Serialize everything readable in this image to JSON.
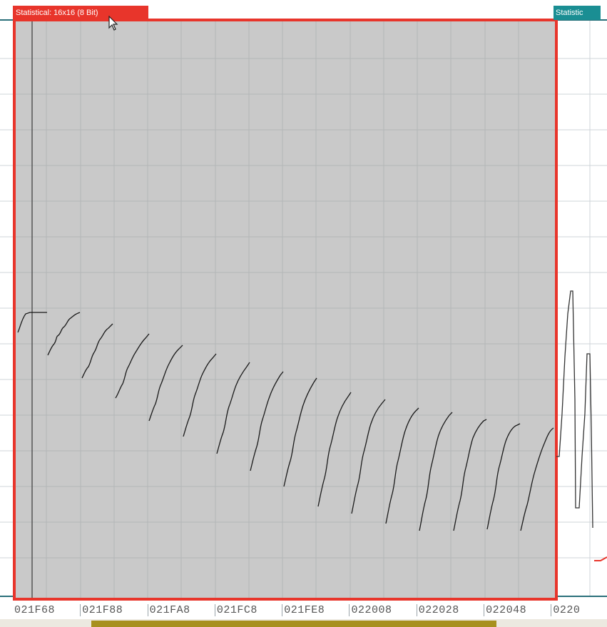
{
  "selection": {
    "label": "Statistical: 16x16 (8 Bit)",
    "color": "#e8352b"
  },
  "next_selection": {
    "label": "Statistic",
    "color": "#1a8e93"
  },
  "address_axis": {
    "labels": [
      "021F68",
      "021F88",
      "021FA8",
      "021FC8",
      "021FE8",
      "022008",
      "022028",
      "022048",
      "0220"
    ]
  },
  "icons": {
    "cursor": "mouse-pointer-icon"
  },
  "colors": {
    "plot_background": "#c9c9c9",
    "gridline": "#b4b6b8",
    "trace": "#1a1a1a",
    "selection_border": "#e8352b",
    "scrollbar_thumb": "#a7901e"
  }
}
